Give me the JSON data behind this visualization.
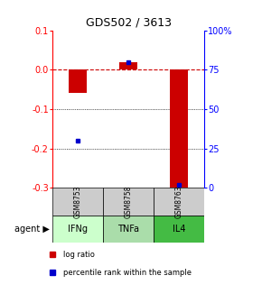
{
  "title": "GDS502 / 3613",
  "samples": [
    "GSM8753",
    "GSM8758",
    "GSM8763"
  ],
  "agents": [
    "IFNg",
    "TNFa",
    "IL4"
  ],
  "log_ratios": [
    -0.06,
    0.02,
    -0.3
  ],
  "percentile_ranks": [
    30,
    80,
    2
  ],
  "ylim_left": [
    -0.3,
    0.1
  ],
  "ylim_right": [
    0,
    100
  ],
  "yticks_left": [
    -0.3,
    -0.2,
    -0.1,
    0.0,
    0.1
  ],
  "yticks_right": [
    0,
    25,
    50,
    75,
    100
  ],
  "ytick_labels_right": [
    "0",
    "25",
    "50",
    "75",
    "100%"
  ],
  "bar_color_log": "#cc0000",
  "bar_color_pct": "#0000cc",
  "agent_colors": [
    "#ccffcc",
    "#aaddaa",
    "#44bb44"
  ],
  "sample_bg": "#cccccc",
  "bar_width": 0.35,
  "title_fontsize": 9,
  "tick_fontsize": 7,
  "legend_fontsize": 6
}
